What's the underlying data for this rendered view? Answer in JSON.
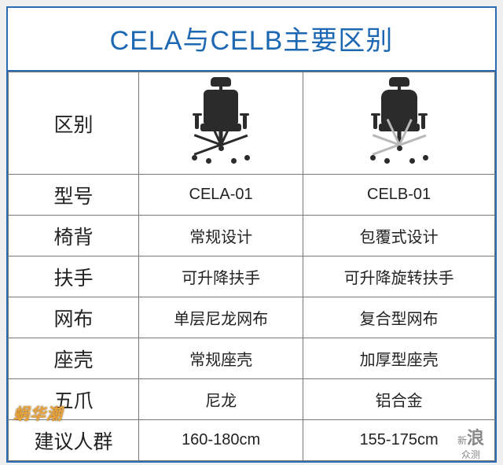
{
  "title": "CELA与CELB主要区别",
  "title_color": "#1d68b3",
  "border_color": "#2a6bb5",
  "cell_border": "#777777",
  "header_label": "区别",
  "chairA": {
    "dark": "#2b2b2b",
    "base": "#2b2b2b"
  },
  "chairB": {
    "dark": "#2b2b2b",
    "base": "#b8b8b8"
  },
  "rows": [
    {
      "label": "型号",
      "a": "CELA-01",
      "b": "CELB-01"
    },
    {
      "label": "椅背",
      "a": "常规设计",
      "b": "包覆式设计"
    },
    {
      "label": "扶手",
      "a": "可升降扶手",
      "b": "可升降旋转扶手"
    },
    {
      "label": "网布",
      "a": "单层尼龙网布",
      "b": "复合型网布"
    },
    {
      "label": "座壳",
      "a": "常规座壳",
      "b": "加厚型座壳"
    },
    {
      "label": "五爪",
      "a": "尼龙",
      "b": "铝合金"
    },
    {
      "label": "建议人群",
      "a": "160-180cm",
      "b": "155-175cm"
    }
  ],
  "watermark_left": "蜗华潮",
  "watermark_right": {
    "line1": "新",
    "line2": "浪",
    "line3": "众测"
  }
}
